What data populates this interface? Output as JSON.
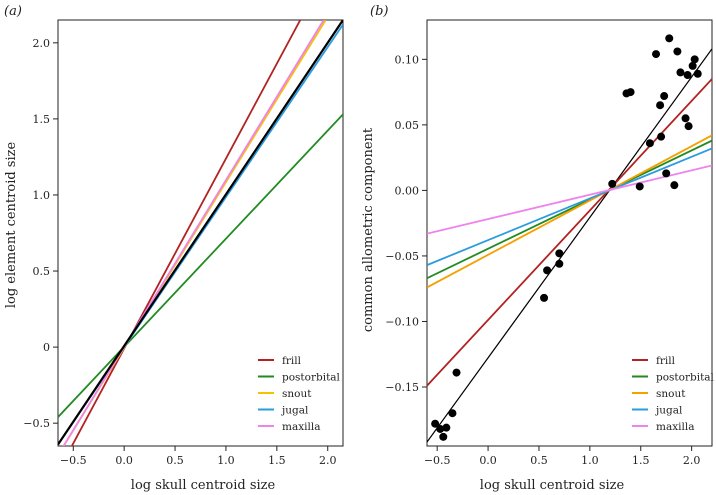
{
  "chart_data": [
    {
      "type": "line",
      "panel_label": "(a)",
      "xlabel": "log skull centroid size",
      "ylabel": "log element centroid size",
      "xlim": [
        -0.65,
        2.15
      ],
      "ylim": [
        -0.65,
        2.15
      ],
      "x_ticks": [
        -0.5,
        0.0,
        0.5,
        1.0,
        1.5,
        2.0
      ],
      "x_tick_labels": [
        "−0.5",
        "0.0",
        "0.5",
        "1.0",
        "1.5",
        "2.0"
      ],
      "y_ticks": [
        -0.5,
        0.0,
        0.5,
        1.0,
        1.5,
        2.0
      ],
      "y_tick_labels": [
        "−0.5",
        "0",
        "0.5",
        "1.0",
        "1.5",
        "2.0"
      ],
      "legend_position": "bottom-right",
      "series": [
        {
          "name": "frill",
          "color": "#b22222",
          "x": [
            -0.65,
            1.73
          ],
          "y": [
            -0.82,
            2.15
          ]
        },
        {
          "name": "postorbital",
          "color": "#228b22",
          "x": [
            -0.65,
            2.15
          ],
          "y": [
            -0.46,
            1.53
          ]
        },
        {
          "name": "snout",
          "color": "#f5c400",
          "x": [
            -0.65,
            1.98
          ],
          "y": [
            -0.71,
            2.15
          ]
        },
        {
          "name": "jugal",
          "color": "#2b9be0",
          "x": [
            -0.65,
            2.15
          ],
          "y": [
            -0.64,
            2.12
          ]
        },
        {
          "name": "maxilla",
          "color": "#ee82ee",
          "x": [
            -0.65,
            1.96
          ],
          "y": [
            -0.71,
            2.15
          ]
        },
        {
          "color": "#000000",
          "x": [
            -0.65,
            2.15
          ],
          "y": [
            -0.64,
            2.15
          ]
        }
      ]
    },
    {
      "type": "scatter",
      "panel_label": "(b)",
      "xlabel": "log skull centroid size",
      "ylabel": "common allometric component",
      "xlim": [
        -0.6,
        2.2
      ],
      "ylim": [
        -0.195,
        0.13
      ],
      "x_ticks": [
        -0.5,
        0.0,
        0.5,
        1.0,
        1.5,
        2.0
      ],
      "x_tick_labels": [
        "−0.5",
        "0.0",
        "0.5",
        "1.0",
        "1.5",
        "2.0"
      ],
      "y_ticks": [
        -0.15,
        -0.1,
        -0.05,
        0.0,
        0.05,
        0.1
      ],
      "y_tick_labels": [
        "−0.15",
        "−0.10",
        "−0.05",
        "0.00",
        "0.05",
        "0.10"
      ],
      "legend_position": "bottom-right",
      "points": {
        "x": [
          -0.52,
          -0.47,
          -0.44,
          -0.41,
          -0.35,
          -0.31,
          0.55,
          0.58,
          0.7,
          0.7,
          1.22,
          1.36,
          1.4,
          1.49,
          1.59,
          1.65,
          1.69,
          1.7,
          1.73,
          1.75,
          1.78,
          1.83,
          1.86,
          1.89,
          1.94,
          1.96,
          1.97,
          2.01,
          2.03,
          2.06
        ],
        "y": [
          -0.178,
          -0.182,
          -0.188,
          -0.181,
          -0.17,
          -0.139,
          -0.082,
          -0.061,
          -0.056,
          -0.048,
          0.005,
          0.074,
          0.075,
          0.003,
          0.036,
          0.104,
          0.065,
          0.041,
          0.072,
          0.013,
          0.116,
          0.004,
          0.106,
          0.09,
          0.055,
          0.088,
          0.049,
          0.095,
          0.1,
          0.089
        ]
      },
      "series": [
        {
          "color": "#000000",
          "x": [
            -0.6,
            2.2
          ],
          "y": [
            -0.192,
            0.108
          ]
        },
        {
          "name": "frill",
          "color": "#b22222",
          "x": [
            -0.6,
            2.2
          ],
          "y": [
            -0.149,
            0.085
          ]
        },
        {
          "name": "postorbital",
          "color": "#228b22",
          "x": [
            -0.6,
            2.2
          ],
          "y": [
            -0.067,
            0.038
          ]
        },
        {
          "name": "snout",
          "color": "#f5a000",
          "x": [
            -0.6,
            2.2
          ],
          "y": [
            -0.074,
            0.042
          ]
        },
        {
          "name": "jugal",
          "color": "#2b9be0",
          "x": [
            -0.6,
            2.2
          ],
          "y": [
            -0.057,
            0.032
          ]
        },
        {
          "name": "maxilla",
          "color": "#ee82ee",
          "x": [
            -0.6,
            2.2
          ],
          "y": [
            -0.033,
            0.019
          ]
        }
      ]
    }
  ]
}
